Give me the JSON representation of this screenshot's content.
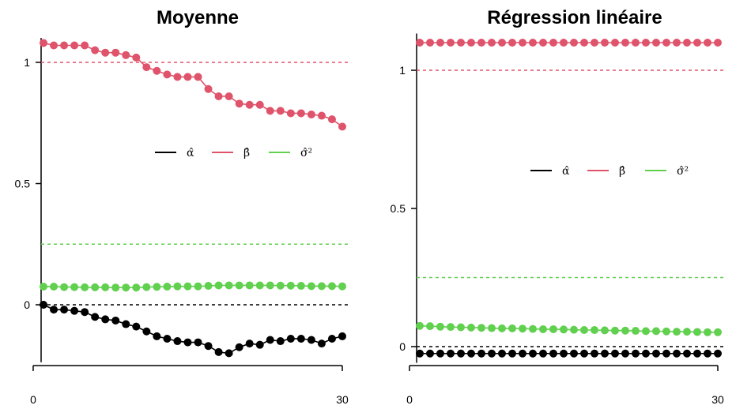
{
  "chart_data": [
    {
      "type": "line",
      "title": "Moyenne",
      "xlabel": "",
      "ylabel": "",
      "x_ticks": [
        0,
        30
      ],
      "y_ticks": [
        {
          "value": 0,
          "label": "0"
        },
        {
          "value": 0.5,
          "label": "0.5"
        },
        {
          "value": 1,
          "label": "1"
        }
      ],
      "xlim": [
        0,
        30
      ],
      "ylim": [
        -0.25,
        1.12
      ],
      "grid": false,
      "legend_position": "center-right",
      "reference_lines": [
        {
          "value": 1,
          "color": "#DF536B"
        },
        {
          "value": 0.25,
          "color": "#61D04F"
        },
        {
          "value": 0,
          "color": "#000000"
        }
      ],
      "x": [
        1,
        2,
        3,
        4,
        5,
        6,
        7,
        8,
        9,
        10,
        11,
        12,
        13,
        14,
        15,
        16,
        17,
        18,
        19,
        20,
        21,
        22,
        23,
        24,
        25,
        26,
        27,
        28,
        29,
        30
      ],
      "series": [
        {
          "name": "α̂",
          "color": "#000000",
          "values": [
            0.0,
            -0.02,
            -0.02,
            -0.025,
            -0.03,
            -0.05,
            -0.06,
            -0.065,
            -0.08,
            -0.09,
            -0.11,
            -0.13,
            -0.14,
            -0.15,
            -0.155,
            -0.155,
            -0.17,
            -0.195,
            -0.2,
            -0.175,
            -0.16,
            -0.165,
            -0.145,
            -0.15,
            -0.14,
            -0.14,
            -0.145,
            -0.16,
            -0.14,
            -0.13
          ]
        },
        {
          "name": "β̂",
          "color": "#DF536B",
          "values": [
            1.08,
            1.07,
            1.07,
            1.07,
            1.07,
            1.05,
            1.04,
            1.04,
            1.03,
            1.02,
            0.98,
            0.965,
            0.95,
            0.94,
            0.94,
            0.94,
            0.89,
            0.86,
            0.86,
            0.83,
            0.825,
            0.825,
            0.8,
            0.8,
            0.79,
            0.79,
            0.785,
            0.78,
            0.765,
            0.735
          ]
        },
        {
          "name": "σ̂²",
          "color": "#61D04F",
          "values": [
            0.075,
            0.075,
            0.073,
            0.073,
            0.072,
            0.072,
            0.072,
            0.071,
            0.071,
            0.071,
            0.073,
            0.074,
            0.075,
            0.076,
            0.076,
            0.076,
            0.078,
            0.08,
            0.08,
            0.08,
            0.08,
            0.08,
            0.08,
            0.079,
            0.079,
            0.078,
            0.077,
            0.077,
            0.077,
            0.076
          ]
        }
      ]
    },
    {
      "type": "line",
      "title": "Régression linéaire",
      "xlabel": "",
      "ylabel": "",
      "x_ticks": [
        0,
        30
      ],
      "y_ticks": [
        {
          "value": 0,
          "label": "0"
        },
        {
          "value": 0.5,
          "label": "0.5"
        },
        {
          "value": 1,
          "label": "1"
        }
      ],
      "xlim": [
        0,
        30
      ],
      "ylim": [
        -0.07,
        1.15
      ],
      "grid": false,
      "legend_position": "center-right",
      "reference_lines": [
        {
          "value": 1,
          "color": "#DF536B"
        },
        {
          "value": 0.25,
          "color": "#61D04F"
        },
        {
          "value": 0,
          "color": "#000000"
        }
      ],
      "x": [
        1,
        2,
        3,
        4,
        5,
        6,
        7,
        8,
        9,
        10,
        11,
        12,
        13,
        14,
        15,
        16,
        17,
        18,
        19,
        20,
        21,
        22,
        23,
        24,
        25,
        26,
        27,
        28,
        29,
        30
      ],
      "series": [
        {
          "name": "α̂",
          "color": "#000000",
          "values": [
            -0.025,
            -0.025,
            -0.025,
            -0.025,
            -0.025,
            -0.025,
            -0.025,
            -0.025,
            -0.025,
            -0.025,
            -0.025,
            -0.025,
            -0.025,
            -0.025,
            -0.025,
            -0.025,
            -0.025,
            -0.025,
            -0.025,
            -0.025,
            -0.025,
            -0.025,
            -0.025,
            -0.025,
            -0.025,
            -0.025,
            -0.025,
            -0.025,
            -0.025,
            -0.025
          ]
        },
        {
          "name": "β̂",
          "color": "#DF536B",
          "values": [
            1.1,
            1.1,
            1.1,
            1.1,
            1.1,
            1.1,
            1.1,
            1.1,
            1.1,
            1.1,
            1.1,
            1.1,
            1.1,
            1.1,
            1.1,
            1.1,
            1.1,
            1.1,
            1.1,
            1.1,
            1.1,
            1.1,
            1.1,
            1.1,
            1.1,
            1.1,
            1.1,
            1.1,
            1.1,
            1.1
          ]
        },
        {
          "name": "σ̂²",
          "color": "#61D04F",
          "values": [
            0.075,
            0.074,
            0.072,
            0.071,
            0.07,
            0.069,
            0.068,
            0.067,
            0.066,
            0.066,
            0.065,
            0.064,
            0.063,
            0.063,
            0.062,
            0.061,
            0.06,
            0.06,
            0.059,
            0.058,
            0.058,
            0.057,
            0.056,
            0.056,
            0.055,
            0.054,
            0.054,
            0.053,
            0.052,
            0.052
          ]
        }
      ]
    }
  ]
}
